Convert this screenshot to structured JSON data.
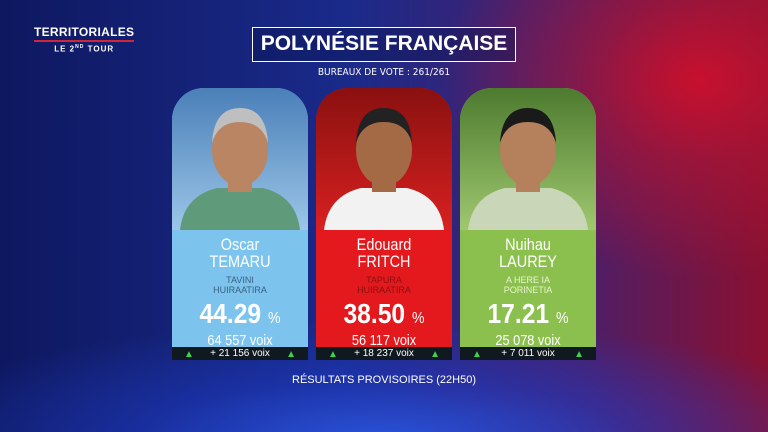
{
  "logo": {
    "line1": "TERRITORIALES",
    "line2_pre": "LE 2",
    "line2_sup": "ND",
    "line2_post": " TOUR"
  },
  "title": "POLYNÉSIE FRANÇAISE",
  "subtitle": "BUREAUX DE VOTE : 261/261",
  "footer": "RÉSULTATS PROVISOIRES (22H50)",
  "candidates": [
    {
      "first": "Oscar",
      "last": "TEMARU",
      "party1": "TAVINI",
      "party2": "HUIRAATIRA",
      "pct": "44.29",
      "pct_sign": "%",
      "votes": "64 557 voix",
      "gain": "+ 21 156 voix",
      "color": "#7cc4ee",
      "party_color": "#3a5f80"
    },
    {
      "first": "Edouard",
      "last": "FRITCH",
      "party1": "TAPURA",
      "party2": "HUIRAATIRA",
      "pct": "38.50",
      "pct_sign": "%",
      "votes": "56 117 voix",
      "gain": "+ 18 237 voix",
      "color": "#e3191e",
      "party_color": "#8a1010"
    },
    {
      "first": "Nuihau",
      "last": "LAUREY",
      "party1": "A HERE IA",
      "party2": "PORINETIA",
      "pct": "17.21",
      "pct_sign": "%",
      "votes": "25 078 voix",
      "gain": "+ 7 011 voix",
      "color": "#8cc04e",
      "party_color": "#e8f5d0"
    }
  ],
  "icons": {
    "arrow": "chevron-up-icon"
  }
}
